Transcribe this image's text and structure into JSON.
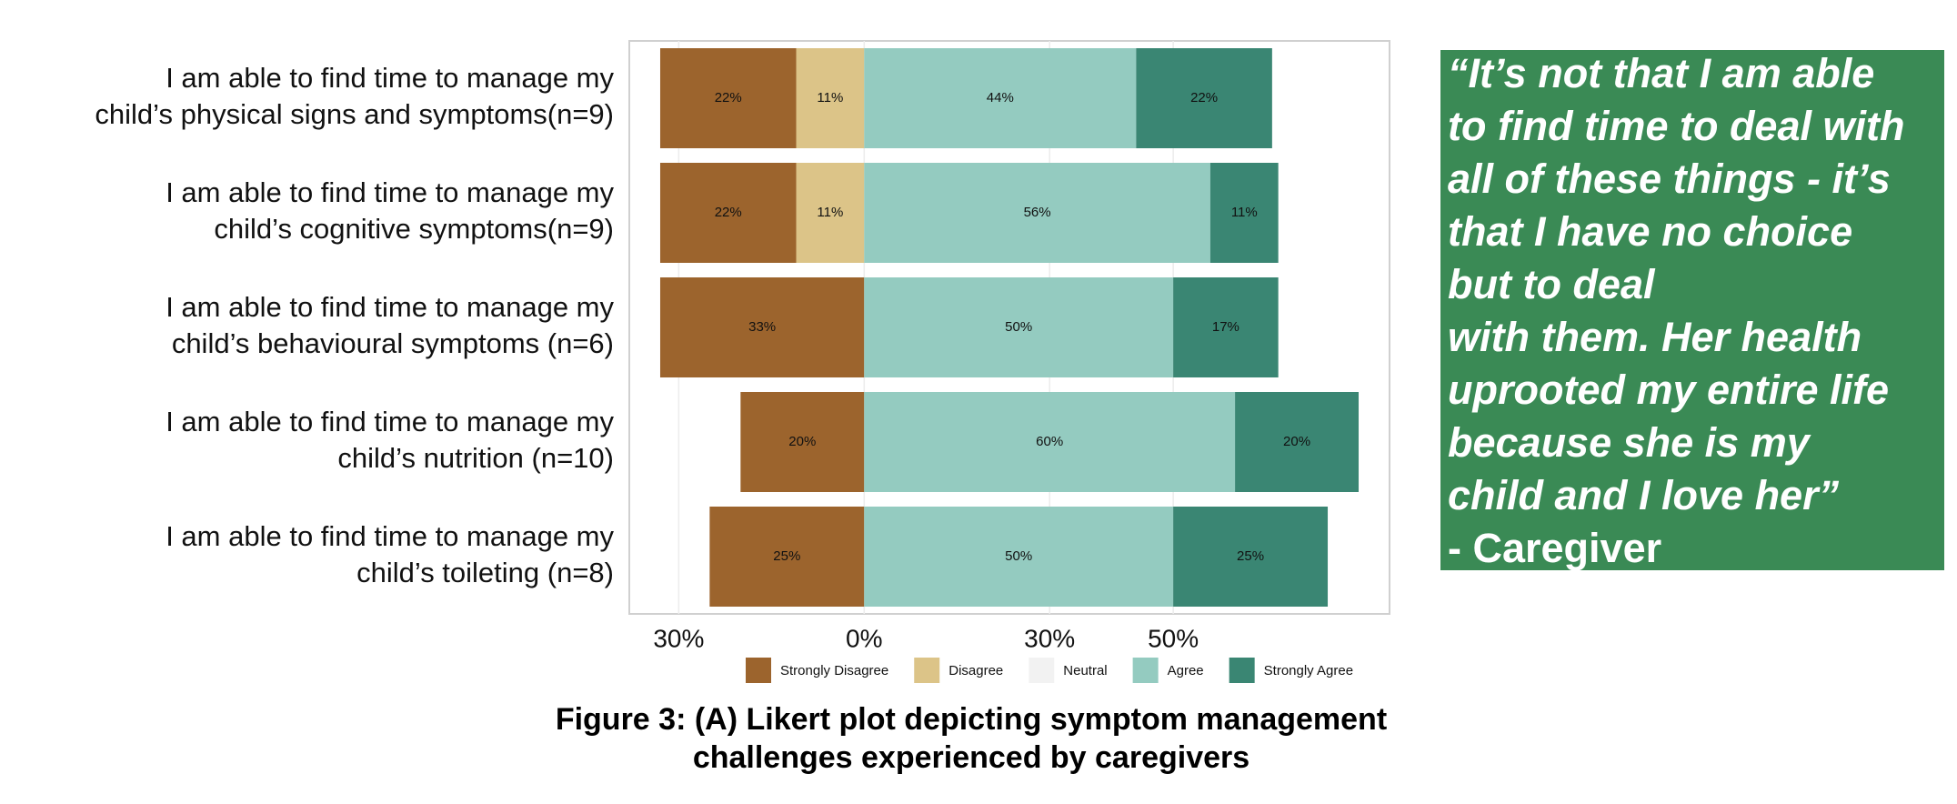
{
  "chart_data": {
    "type": "diverging_bar",
    "categories": [
      [
        "I am able to find time to manage my",
        "child’s physical signs and symptoms(n=9)"
      ],
      [
        "I am able to find time to manage my",
        "child’s cognitive symptoms(n=9)"
      ],
      [
        "I am able to find time to manage my",
        "child’s behavioural symptoms  (n=6)"
      ],
      [
        "I am able to find time to manage my",
        "child’s nutrition (n=10)"
      ],
      [
        "I am able to find time to manage my",
        "child’s toileting (n=8)"
      ]
    ],
    "series": [
      {
        "name": "Strongly Disagree",
        "color": "#9c642d",
        "side": "negative",
        "values": [
          22,
          22,
          33,
          20,
          25
        ],
        "value_labels": [
          "22%",
          "22%",
          "33%",
          "20%",
          "25%"
        ]
      },
      {
        "name": "Disagree",
        "color": "#dcc488",
        "side": "negative",
        "values": [
          11,
          11,
          0,
          0,
          0
        ],
        "value_labels": [
          "11%",
          "11%",
          null,
          null,
          null
        ]
      },
      {
        "name": "Neutral",
        "color": "#f2f2f2",
        "side": "center",
        "values": [
          0,
          0,
          0,
          0,
          0
        ],
        "value_labels": [
          null,
          null,
          null,
          null,
          null
        ]
      },
      {
        "name": "Agree",
        "color": "#94cbc0",
        "side": "positive",
        "values": [
          44,
          56,
          50,
          60,
          50
        ],
        "value_labels": [
          "44%",
          "56%",
          "50%",
          "60%",
          "50%"
        ]
      },
      {
        "name": "Strongly Agree",
        "color": "#3a8673",
        "side": "positive",
        "values": [
          22,
          11,
          17,
          20,
          25
        ],
        "value_labels": [
          "22%",
          "11%",
          "17%",
          "20%",
          "25%"
        ]
      }
    ],
    "xlim": [
      -38,
      85
    ],
    "xticks": [
      {
        "value": -30,
        "label": "30%"
      },
      {
        "value": 0,
        "label": "0%"
      },
      {
        "value": 30,
        "label": "30%"
      },
      {
        "value": 50,
        "label": "50%"
      }
    ],
    "grid": true,
    "legend": "bottom"
  },
  "caption": [
    "Figure 3: (A) Likert plot depicting symptom management",
    "challenges experienced by caregivers"
  ],
  "quote": [
    "“It’s not that I am able",
    "to find time to deal with",
    "all of these things - it’s",
    "that I have no choice",
    "but to deal",
    "with them. Her health",
    "uprooted my entire life",
    "because she is my",
    "child and I love her”",
    "- Caregiver"
  ]
}
